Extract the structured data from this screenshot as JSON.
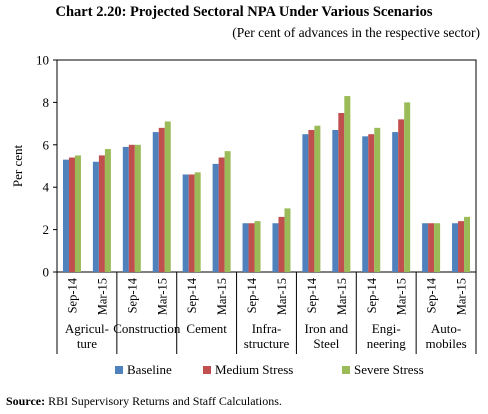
{
  "chart_data": {
    "type": "bar",
    "title": "Chart 2.20: Projected Sectoral NPA Under Various Scenarios",
    "subtitle": "(Per cent of advances in the respective sector)",
    "ylabel": "Per cent",
    "xlabel": "",
    "ylim": [
      0,
      10
    ],
    "yticks": [
      0,
      2,
      4,
      6,
      8,
      10
    ],
    "grid": false,
    "legend_position": "bottom",
    "categories": [
      "Sep-14",
      "Mar-15",
      "Sep-14",
      "Mar-15",
      "Sep-14",
      "Mar-15",
      "Sep-14",
      "Mar-15",
      "Sep-14",
      "Mar-15",
      "Sep-14",
      "Mar-15",
      "Sep-14",
      "Mar-15"
    ],
    "groups": [
      {
        "label": [
          "Agricul-",
          "ture"
        ]
      },
      {
        "label": [
          "Construction"
        ]
      },
      {
        "label": [
          "Cement"
        ]
      },
      {
        "label": [
          "Infra-",
          "structure"
        ]
      },
      {
        "label": [
          "Iron and",
          "Steel"
        ]
      },
      {
        "label": [
          "Engi-",
          "neering"
        ]
      },
      {
        "label": [
          "Auto-",
          "mobiles"
        ]
      }
    ],
    "series": [
      {
        "name": "Baseline",
        "color": "#4f81bd",
        "values": [
          5.3,
          5.2,
          5.9,
          6.6,
          4.6,
          5.1,
          2.3,
          2.3,
          6.5,
          6.7,
          6.4,
          6.6,
          2.3,
          2.3
        ]
      },
      {
        "name": "Medium Stress",
        "color": "#c0504d",
        "values": [
          5.4,
          5.5,
          6.0,
          6.8,
          4.6,
          5.4,
          2.3,
          2.6,
          6.7,
          7.5,
          6.5,
          7.2,
          2.3,
          2.4
        ]
      },
      {
        "name": "Severe Stress",
        "color": "#9bbb59",
        "values": [
          5.5,
          5.8,
          6.0,
          7.1,
          4.7,
          5.7,
          2.4,
          3.0,
          6.9,
          8.3,
          6.8,
          8.0,
          2.3,
          2.6
        ]
      }
    ]
  },
  "source": {
    "lead": "Source:",
    "text": " RBI Supervisory Returns and Staff Calculations."
  }
}
